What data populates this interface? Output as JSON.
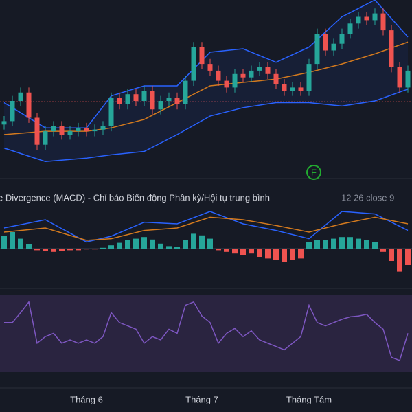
{
  "price_pane": {
    "open": [
      26,
      28,
      40,
      45,
      30,
      14,
      22,
      25,
      20,
      22,
      24,
      22,
      23,
      25,
      42,
      38,
      44,
      40,
      46,
      35,
      40,
      42,
      38,
      52,
      72,
      62,
      58,
      52,
      48,
      56,
      54,
      58,
      60,
      56,
      50,
      46,
      48,
      46,
      62,
      80,
      70,
      74,
      80,
      86,
      90,
      88,
      92,
      82,
      60,
      48
    ],
    "high": [
      31,
      43,
      48,
      48,
      33,
      25,
      28,
      28,
      25,
      27,
      27,
      26,
      28,
      45,
      45,
      47,
      47,
      49,
      49,
      43,
      45,
      45,
      55,
      75,
      75,
      65,
      61,
      55,
      59,
      59,
      61,
      63,
      63,
      59,
      53,
      51,
      51,
      65,
      83,
      83,
      77,
      83,
      89,
      93,
      93,
      95,
      95,
      85,
      63,
      61
    ],
    "low": [
      23,
      25,
      37,
      27,
      11,
      11,
      19,
      17,
      17,
      19,
      19,
      19,
      20,
      22,
      35,
      35,
      37,
      37,
      32,
      32,
      37,
      35,
      35,
      49,
      59,
      55,
      49,
      45,
      45,
      51,
      51,
      55,
      53,
      47,
      43,
      43,
      43,
      43,
      59,
      67,
      67,
      71,
      77,
      83,
      85,
      85,
      79,
      57,
      45,
      45
    ],
    "close": [
      28,
      40,
      45,
      30,
      14,
      22,
      25,
      20,
      22,
      24,
      22,
      23,
      25,
      42,
      38,
      44,
      40,
      46,
      35,
      40,
      42,
      38,
      52,
      72,
      62,
      58,
      52,
      48,
      56,
      54,
      58,
      60,
      56,
      50,
      46,
      48,
      46,
      62,
      80,
      70,
      74,
      80,
      86,
      90,
      88,
      92,
      82,
      60,
      48,
      58
    ],
    "up_color": "#26a69a",
    "down_color": "#ef5350",
    "bands": {
      "x": [
        0,
        5,
        10,
        13,
        17,
        21,
        25,
        29,
        33,
        37,
        41,
        45,
        49
      ],
      "upper": [
        39,
        24,
        24,
        43,
        49,
        49,
        69,
        71,
        63,
        72,
        90,
        100,
        78
      ],
      "basis": [
        20,
        22,
        22,
        24,
        29,
        39,
        49,
        51,
        53,
        57,
        62,
        68,
        75
      ],
      "lower": [
        12,
        4,
        6,
        8,
        10,
        20,
        31,
        36,
        39,
        39,
        37,
        40,
        47
      ],
      "band_color": "#2962ff",
      "basis_color": "#d47a1e"
    },
    "marker": "F"
  },
  "macd_pane": {
    "title": "e Divergence (MACD) - Chỉ báo Biến động Phân kỳ/Hội tụ trung bình",
    "params": "12 26 close 9",
    "histogram": [
      15,
      20,
      12,
      5,
      -2,
      -3,
      -4,
      -3,
      -2,
      -2,
      -1,
      -1,
      1,
      4,
      7,
      10,
      12,
      14,
      11,
      6,
      3,
      2,
      10,
      18,
      16,
      12,
      -2,
      -4,
      -6,
      -8,
      -6,
      -10,
      -12,
      -14,
      -16,
      -14,
      -12,
      8,
      10,
      10,
      12,
      14,
      14,
      12,
      10,
      8,
      -4,
      -15,
      -28,
      -20
    ],
    "x": [
      0,
      5,
      10,
      13,
      17,
      21,
      25,
      29,
      33,
      37,
      41,
      45,
      49
    ],
    "macd": [
      25,
      35,
      8,
      15,
      32,
      30,
      45,
      30,
      22,
      12,
      45,
      42,
      22
    ],
    "signal": [
      20,
      25,
      10,
      12,
      22,
      25,
      38,
      35,
      28,
      20,
      30,
      38,
      30
    ],
    "macd_color": "#2962ff",
    "signal_color": "#d47a1e"
  },
  "rsi_pane": {
    "values": [
      71,
      71,
      83,
      96,
      46,
      54,
      58,
      46,
      50,
      46,
      50,
      46,
      54,
      83,
      71,
      67,
      63,
      46,
      54,
      50,
      63,
      58,
      92,
      96,
      79,
      71,
      46,
      58,
      64,
      54,
      61,
      50,
      46,
      42,
      38,
      46,
      54,
      92,
      71,
      67,
      71,
      75,
      78,
      79,
      81,
      71,
      63,
      29,
      25,
      58
    ],
    "color": "#7e57c2"
  },
  "x_axis": {
    "labels": [
      "Tháng 6",
      "Tháng 7",
      "Tháng Tám"
    ],
    "positions": [
      10,
      24,
      37
    ]
  }
}
